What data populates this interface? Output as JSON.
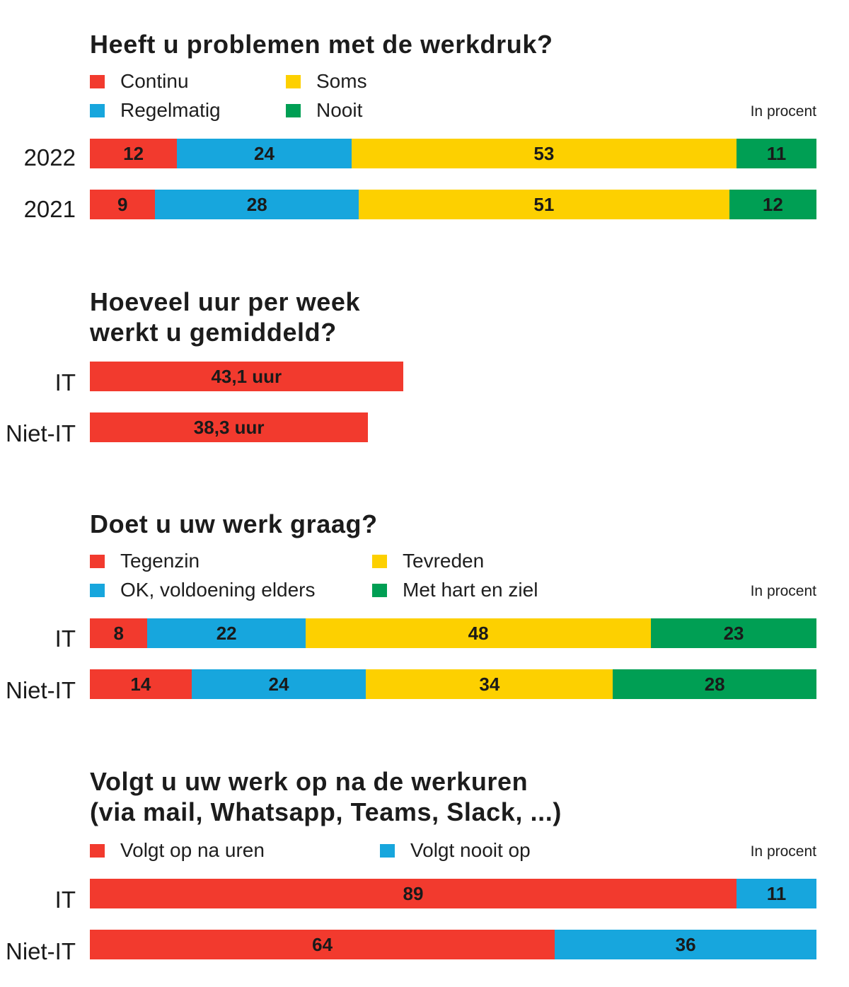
{
  "colors": {
    "red": "#f23a2e",
    "blue": "#17a6dd",
    "yellow": "#fdd000",
    "green": "#009f54"
  },
  "chart_data": [
    {
      "type": "bar",
      "orientation": "horizontal-stacked",
      "title": "Heeft u problemen met de werkdruk?",
      "unit_note": "In procent",
      "legend": [
        "Continu",
        "Regelmatig",
        "Soms",
        "Nooit"
      ],
      "categories": [
        "2022",
        "2021"
      ],
      "series": [
        {
          "name": "Continu",
          "color": "#f23a2e",
          "values": [
            12,
            9
          ]
        },
        {
          "name": "Regelmatig",
          "color": "#17a6dd",
          "values": [
            24,
            28
          ]
        },
        {
          "name": "Soms",
          "color": "#fdd000",
          "values": [
            53,
            51
          ]
        },
        {
          "name": "Nooit",
          "color": "#009f54",
          "values": [
            11,
            12
          ]
        }
      ],
      "xlim": [
        0,
        100
      ]
    },
    {
      "type": "bar",
      "orientation": "horizontal",
      "title": "Hoeveel uur per week\nwerkt u gemiddeld?",
      "categories": [
        "IT",
        "Niet-IT"
      ],
      "values": [
        43.1,
        38.3
      ],
      "value_labels": [
        "43,1 uur",
        "38,3 uur"
      ],
      "color": "#f23a2e",
      "xlim": [
        0,
        100
      ]
    },
    {
      "type": "bar",
      "orientation": "horizontal-stacked",
      "title": "Doet u uw werk graag?",
      "unit_note": "In procent",
      "legend": [
        "Tegenzin",
        "OK, voldoening elders",
        "Tevreden",
        "Met hart en ziel"
      ],
      "categories": [
        "IT",
        "Niet-IT"
      ],
      "series": [
        {
          "name": "Tegenzin",
          "color": "#f23a2e",
          "values": [
            8,
            14
          ]
        },
        {
          "name": "OK, voldoening elders",
          "color": "#17a6dd",
          "values": [
            22,
            24
          ]
        },
        {
          "name": "Tevreden",
          "color": "#fdd000",
          "values": [
            48,
            34
          ]
        },
        {
          "name": "Met hart en ziel",
          "color": "#009f54",
          "values": [
            23,
            28
          ]
        }
      ],
      "xlim": [
        0,
        100
      ]
    },
    {
      "type": "bar",
      "orientation": "horizontal-stacked",
      "title": "Volgt u uw werk op na de werkuren\n(via mail, Whatsapp, Teams, Slack, ...)",
      "unit_note": "In procent",
      "legend": [
        "Volgt op na uren",
        "Volgt nooit op"
      ],
      "categories": [
        "IT",
        "Niet-IT"
      ],
      "series": [
        {
          "name": "Volgt op na uren",
          "color": "#f23a2e",
          "values": [
            89,
            64
          ]
        },
        {
          "name": "Volgt nooit op",
          "color": "#17a6dd",
          "values": [
            11,
            36
          ]
        }
      ],
      "xlim": [
        0,
        100
      ]
    }
  ]
}
